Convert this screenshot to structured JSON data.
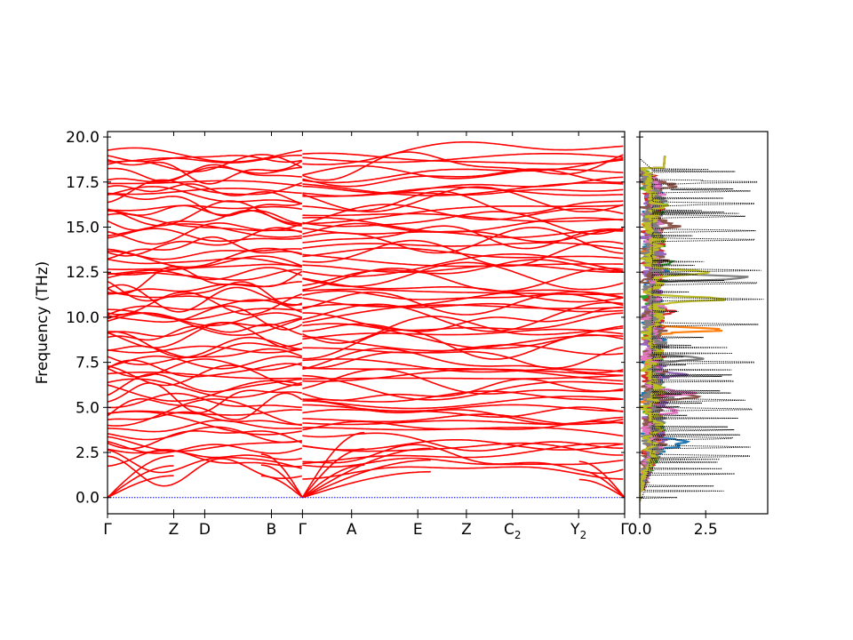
{
  "chart_data": [
    {
      "type": "line",
      "panel": "band-structure",
      "ylabel": "Frequency (THz)",
      "ylim": [
        -0.9,
        20.3
      ],
      "yticks": [
        "0.0",
        "2.5",
        "5.0",
        "7.5",
        "10.0",
        "12.5",
        "15.0",
        "17.5",
        "20.0"
      ],
      "ytick_values": [
        0,
        2.5,
        5,
        7.5,
        10,
        12.5,
        15,
        17.5,
        20
      ],
      "path_labels": [
        {
          "label": "Γ",
          "sub": "",
          "x": 0.0
        },
        {
          "label": "Z",
          "sub": "",
          "x": 0.128
        },
        {
          "label": "D",
          "sub": "",
          "x": 0.188
        },
        {
          "label": "B",
          "sub": "",
          "x": 0.317
        },
        {
          "label": "Γ",
          "sub": "",
          "x": 0.377
        },
        {
          "label": "A",
          "sub": "",
          "x": 0.472
        },
        {
          "label": "E",
          "sub": "",
          "x": 0.6
        },
        {
          "label": "Z",
          "sub": "",
          "x": 0.694
        },
        {
          "label": "C",
          "sub": "2",
          "x": 0.783
        },
        {
          "label": "Y",
          "sub": "2",
          "x": 0.911
        },
        {
          "label": "Γ",
          "sub": "",
          "x": 1.0
        }
      ],
      "segment_break_x": 0.377,
      "band_color": "#ff0000",
      "zero_line_color": "#0000ff",
      "band_count_approx": 72,
      "band_top_frequency": 19.1
    },
    {
      "type": "line",
      "panel": "density-of-states",
      "xlim": [
        0,
        4.85
      ],
      "ylim": [
        -0.9,
        20.3
      ],
      "xticks": [
        "0.0",
        "2.5"
      ],
      "xtick_values": [
        0,
        2.5
      ],
      "total_color": "#000000",
      "series_colors": [
        "#1f77b4",
        "#ff7f0e",
        "#2ca02c",
        "#d62728",
        "#9467bd",
        "#8c564b",
        "#e377c2",
        "#7f7f7f",
        "#bcbd22"
      ],
      "peaks": [
        {
          "f": 3.1,
          "v": 1.9,
          "s": 0
        },
        {
          "f": 2.8,
          "v": 1.2,
          "s": 0
        },
        {
          "f": 12.2,
          "v": 4.2,
          "s": 7
        },
        {
          "f": 11.0,
          "v": 3.5,
          "s": 8
        },
        {
          "f": 9.3,
          "v": 3.3,
          "s": 1
        },
        {
          "f": 12.5,
          "v": 2.5,
          "s": 8
        },
        {
          "f": 7.7,
          "v": 2.4,
          "s": 7
        },
        {
          "f": 5.8,
          "v": 2.1,
          "s": 6
        },
        {
          "f": 5.6,
          "v": 2.5,
          "s": 5
        },
        {
          "f": 15.1,
          "v": 1.3,
          "s": 5
        },
        {
          "f": 17.3,
          "v": 1.2,
          "s": 5
        },
        {
          "f": 4.8,
          "v": 1.3,
          "s": 6
        },
        {
          "f": 10.3,
          "v": 1.6,
          "s": 3
        },
        {
          "f": 13.0,
          "v": 1.5,
          "s": 2
        },
        {
          "f": 6.8,
          "v": 1.7,
          "s": 4
        }
      ],
      "total_peaks": [
        {
          "f": 2.3,
          "v": 4.5
        },
        {
          "f": 2.8,
          "v": 4.2
        },
        {
          "f": 3.3,
          "v": 3.8
        },
        {
          "f": 4.9,
          "v": 4.6
        },
        {
          "f": 5.4,
          "v": 4.0
        },
        {
          "f": 7.5,
          "v": 4.7
        },
        {
          "f": 9.6,
          "v": 4.5
        },
        {
          "f": 11.0,
          "v": 4.7
        },
        {
          "f": 11.9,
          "v": 4.8
        },
        {
          "f": 12.6,
          "v": 4.6
        },
        {
          "f": 14.3,
          "v": 4.7
        },
        {
          "f": 14.8,
          "v": 4.4
        },
        {
          "f": 15.6,
          "v": 4.0
        },
        {
          "f": 16.3,
          "v": 4.7
        },
        {
          "f": 17.0,
          "v": 4.2
        },
        {
          "f": 17.5,
          "v": 4.8
        }
      ]
    }
  ]
}
